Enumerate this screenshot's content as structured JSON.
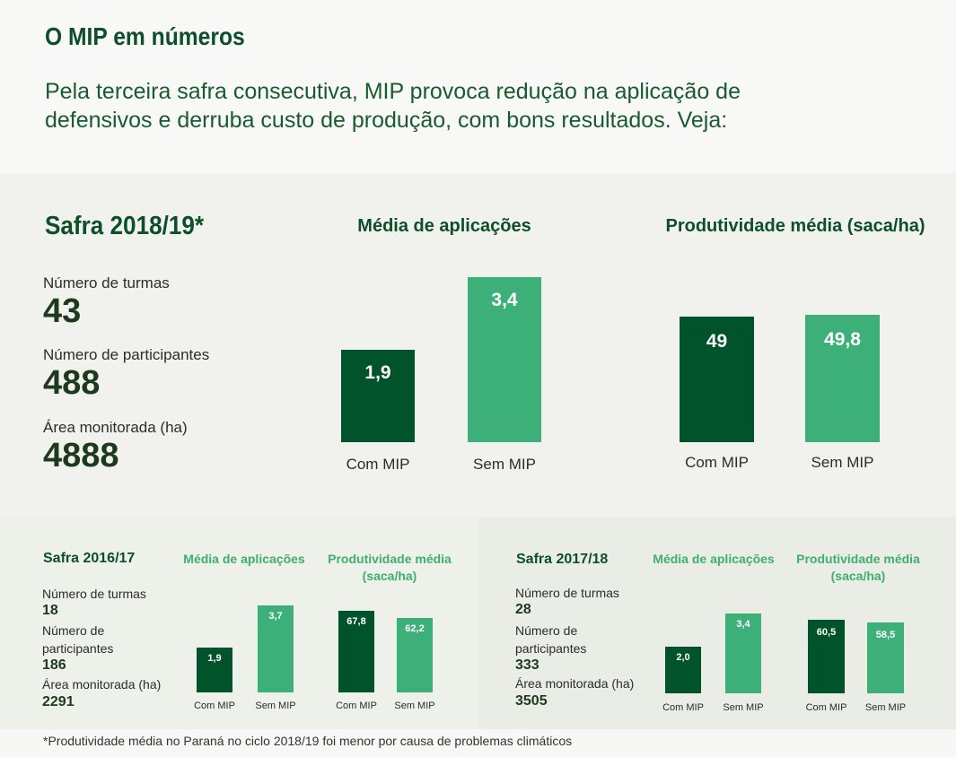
{
  "header": {
    "title": "O MIP em números",
    "intro": "Pela terceira safra consecutiva, MIP provoca redução na aplicação de defensivos e derruba custo de produção, com bons resultados. Veja:"
  },
  "main": {
    "season": "Safra 2018/19*",
    "stats": [
      {
        "label": "Número de turmas",
        "value": "43"
      },
      {
        "label": "Número de participantes",
        "value": "488"
      },
      {
        "label": "Área monitorada (ha)",
        "value": "4888"
      }
    ]
  },
  "lower_left": {
    "season": "Safra 2016/17",
    "stats": [
      {
        "label": "Número de turmas",
        "value": "18"
      },
      {
        "label": "Número de participantes",
        "value": "186"
      },
      {
        "label": "Área monitorada (ha)",
        "value": "2291"
      }
    ]
  },
  "lower_right": {
    "season": "Safra 2017/18",
    "stats": [
      {
        "label": "Número de turmas",
        "value": "28"
      },
      {
        "label": "Número de participantes",
        "value": "333"
      },
      {
        "label": "Área monitorada (ha)",
        "value": "3505"
      }
    ]
  },
  "footnote": "*Produtividade média no Paraná no ciclo 2018/19 foi menor por causa de problemas climáticos",
  "colors": {
    "dark_green": "#00532a",
    "light_green": "#3db07a",
    "title_green": "#0d4f2a"
  },
  "chart_data": [
    {
      "id": "c1819a",
      "type": "bar",
      "title": "Média de aplicações",
      "categories": [
        "Com MIP",
        "Sem MIP"
      ],
      "values": [
        1.9,
        3.4
      ],
      "labels": [
        "1,9",
        "3,4"
      ]
    },
    {
      "id": "c1819b",
      "type": "bar",
      "title": "Produtividade média (saca/ha)",
      "categories": [
        "Com MIP",
        "Sem MIP"
      ],
      "values": [
        49,
        49.8
      ],
      "labels": [
        "49",
        "49,8"
      ]
    },
    {
      "id": "c1617a",
      "type": "bar",
      "title": "Média de aplicações",
      "categories": [
        "Com MIP",
        "Sem MIP"
      ],
      "values": [
        1.9,
        3.7
      ],
      "labels": [
        "1,9",
        "3,7"
      ]
    },
    {
      "id": "c1617b",
      "type": "bar",
      "title": "Produtividade média (saca/ha)",
      "categories": [
        "Com MIP",
        "Sem MIP"
      ],
      "values": [
        67.8,
        62.2
      ],
      "labels": [
        "67,8",
        "62,2"
      ]
    },
    {
      "id": "c1718a",
      "type": "bar",
      "title": "Média de aplicações",
      "categories": [
        "Com MIP",
        "Sem MIP"
      ],
      "values": [
        2.0,
        3.4
      ],
      "labels": [
        "2,0",
        "3,4"
      ]
    },
    {
      "id": "c1718b",
      "type": "bar",
      "title": "Produtividade média (saca/ha)",
      "categories": [
        "Com MIP",
        "Sem MIP"
      ],
      "values": [
        60.5,
        58.5
      ],
      "labels": [
        "60,5",
        "58,5"
      ]
    }
  ]
}
